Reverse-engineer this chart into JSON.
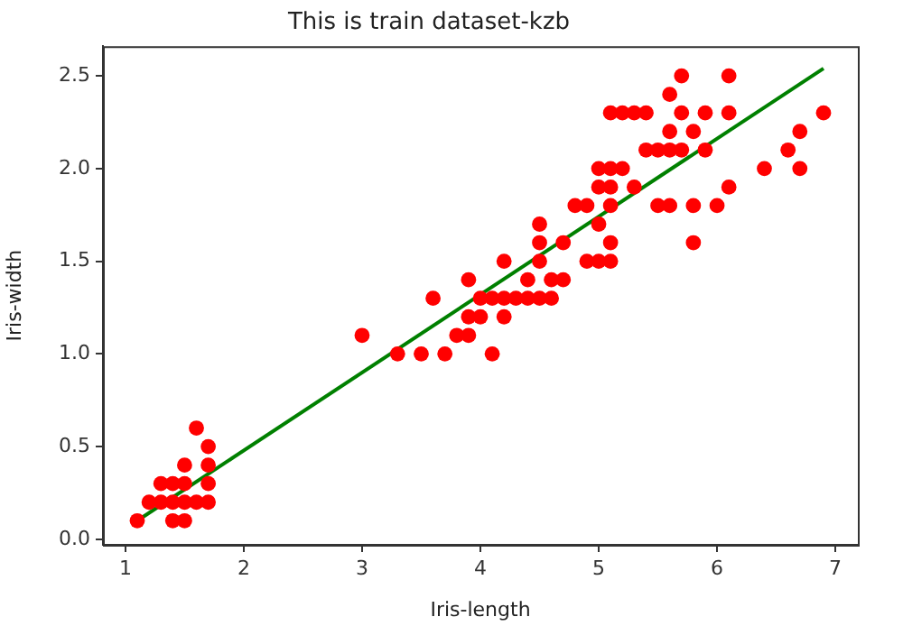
{
  "chart_data": {
    "type": "scatter",
    "title": "This is train dataset-kzb",
    "xlabel": "Iris-length",
    "ylabel": "Iris-width",
    "xlim": [
      0.81,
      7.19
    ],
    "ylim": [
      -0.03,
      2.66
    ],
    "xticks": [
      1,
      2,
      3,
      4,
      5,
      6,
      7
    ],
    "yticks": [
      {
        "value": 0,
        "label": "0.0"
      },
      {
        "value": 0.5,
        "label": "0.5"
      },
      {
        "value": 1,
        "label": "1.0"
      },
      {
        "value": 1.5,
        "label": "1.5"
      },
      {
        "value": 2,
        "label": "2.0"
      },
      {
        "value": 2.5,
        "label": "2.5"
      }
    ],
    "grid": false,
    "legend": false,
    "series": [
      {
        "type": "scatter",
        "color": "#ff0000",
        "marker": "circle",
        "x": [
          1.1,
          1.2,
          1.3,
          1.3,
          1.4,
          1.4,
          1.4,
          1.5,
          1.5,
          1.5,
          1.5,
          1.6,
          1.6,
          1.7,
          1.7,
          1.7,
          1.7,
          3.0,
          3.3,
          3.5,
          3.6,
          3.7,
          3.8,
          3.9,
          3.9,
          3.9,
          4.0,
          4.0,
          4.1,
          4.1,
          4.2,
          4.2,
          4.2,
          4.3,
          4.4,
          4.4,
          4.5,
          4.5,
          4.5,
          4.5,
          4.6,
          4.6,
          4.7,
          4.7,
          4.8,
          4.9,
          4.9,
          5.0,
          5.0,
          5.0,
          5.0,
          5.1,
          5.1,
          5.1,
          5.1,
          5.1,
          5.1,
          5.2,
          5.2,
          5.3,
          5.3,
          5.4,
          5.4,
          5.5,
          5.5,
          5.6,
          5.6,
          5.6,
          5.6,
          5.7,
          5.7,
          5.7,
          5.8,
          5.8,
          5.8,
          5.9,
          5.9,
          6.0,
          6.1,
          6.1,
          6.1,
          6.4,
          6.6,
          6.7,
          6.7,
          6.9
        ],
        "values": [
          0.1,
          0.2,
          0.2,
          0.3,
          0.2,
          0.3,
          0.1,
          0.1,
          0.2,
          0.3,
          0.4,
          0.2,
          0.6,
          0.2,
          0.3,
          0.4,
          0.5,
          1.1,
          1.0,
          1.0,
          1.3,
          1.0,
          1.1,
          1.1,
          1.2,
          1.4,
          1.2,
          1.3,
          1.0,
          1.3,
          1.2,
          1.3,
          1.5,
          1.3,
          1.3,
          1.4,
          1.3,
          1.5,
          1.6,
          1.7,
          1.3,
          1.4,
          1.4,
          1.6,
          1.8,
          1.8,
          1.5,
          1.5,
          1.7,
          1.9,
          2.0,
          1.5,
          1.6,
          1.8,
          1.9,
          2.0,
          2.3,
          2.0,
          2.3,
          1.9,
          2.3,
          2.3,
          2.1,
          1.8,
          2.1,
          1.8,
          2.1,
          2.2,
          2.4,
          2.1,
          2.3,
          2.5,
          1.6,
          1.8,
          2.2,
          2.1,
          2.3,
          1.8,
          1.9,
          2.3,
          2.5,
          2.0,
          2.1,
          2.0,
          2.2,
          2.3
        ]
      },
      {
        "type": "line",
        "color": "#008000",
        "marker": "none",
        "line_style": "solid",
        "x": [
          1.1,
          6.9
        ],
        "values": [
          0.1,
          2.54
        ]
      }
    ]
  }
}
